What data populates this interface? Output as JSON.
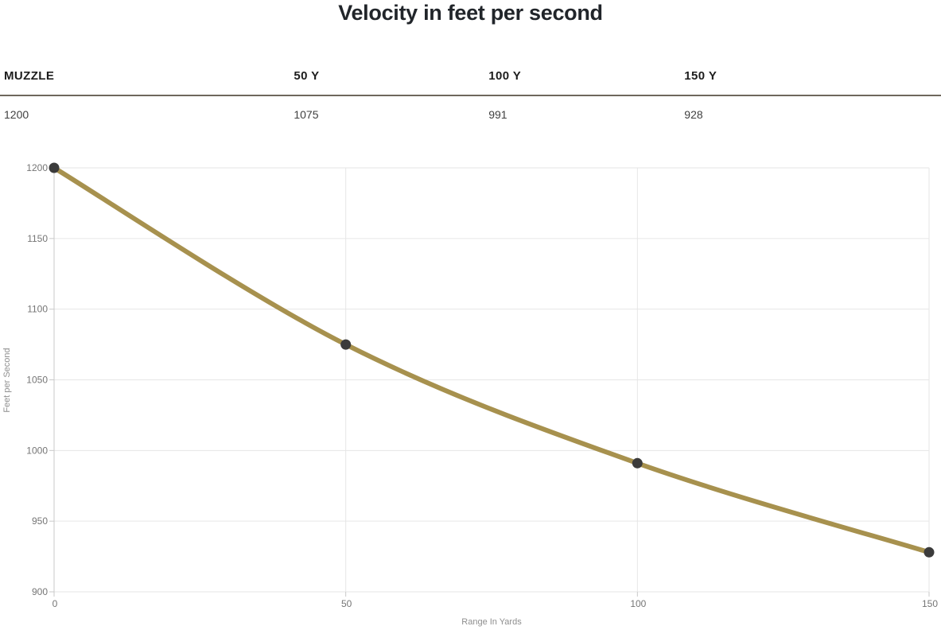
{
  "title": "Velocity in feet per second",
  "table": {
    "columns": [
      {
        "header": "MUZZLE",
        "value": "1200"
      },
      {
        "header": "50 Y",
        "value": "1075"
      },
      {
        "header": "100 Y",
        "value": "991"
      },
      {
        "header": "150 Y",
        "value": "928"
      }
    ]
  },
  "chart_data": {
    "type": "line",
    "x": [
      0,
      50,
      100,
      150
    ],
    "values": [
      1200,
      1075,
      991,
      928
    ],
    "title": "Velocity in feet per second",
    "xlabel": "Range In Yards",
    "ylabel": "Feet per Second",
    "xlim": [
      0,
      150
    ],
    "ylim": [
      900,
      1200
    ],
    "x_ticks": [
      0,
      50,
      100,
      150
    ],
    "y_ticks": [
      900,
      950,
      1000,
      1050,
      1100,
      1150,
      1200
    ],
    "grid": true,
    "legend": "none",
    "line_color": "#a7914e",
    "point_color": "#3b3b3b"
  },
  "colors": {
    "title_text": "#21252a",
    "header_text": "#1d1d1d",
    "value_text": "#404040",
    "table_rule": "#6e675c",
    "grid_line": "#e6e6e6",
    "axis_line": "#c9c9c9",
    "tick_label": "#757575",
    "axis_title": "#8e8e8e",
    "background": "#ffffff"
  }
}
